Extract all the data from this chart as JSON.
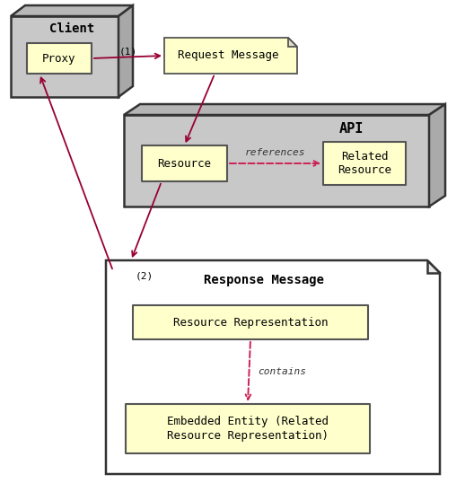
{
  "fig_width": 5.18,
  "fig_height": 5.38,
  "dpi": 100,
  "bg_color": "#ffffff",
  "box_fill": "#ffffcc",
  "box_edge": "#555555",
  "client_fill": "#c8c8c8",
  "api_fill": "#c8c8c8",
  "response_fill": "#ffffff",
  "arrow_color": "#990033",
  "dashed_color": "#cc2255",
  "title": "Client",
  "proxy_label": "Proxy",
  "request_label": "Request Message",
  "api_label": "API",
  "resource_label": "Resource",
  "related_label": "Related\nResource",
  "references_label": "references",
  "label_2": "(2)",
  "label_1": "(1)",
  "response_label": "Response Message",
  "resource_rep_label": "Resource Representation",
  "contains_label": "contains",
  "embedded_label": "Embedded Entity (Related\nResource Representation)"
}
